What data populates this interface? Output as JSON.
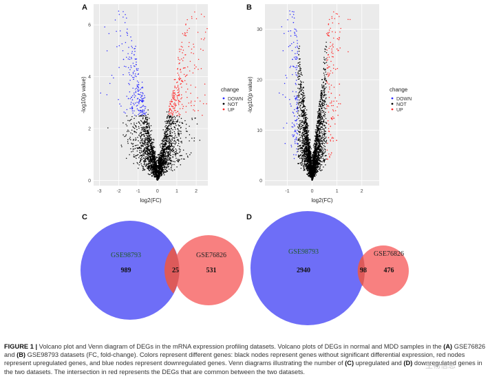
{
  "figure": {
    "panels": {
      "A": "A",
      "B": "B",
      "C": "C",
      "D": "D"
    }
  },
  "chart_data": [
    {
      "type": "scatter",
      "panel": "A",
      "xlabel": "log2(FC)",
      "ylabel": "-log10(p value)",
      "xlim": [
        -3.3,
        2.6
      ],
      "ylim": [
        -0.2,
        6.8
      ],
      "xticks": [
        "-3",
        "-2",
        "-1",
        "0",
        "1",
        "2"
      ],
      "xtick_values": [
        -3,
        -2,
        -1,
        0,
        1,
        2
      ],
      "yticks": [
        "0",
        "2",
        "4",
        "6"
      ],
      "ytick_values": [
        0,
        2,
        4,
        6
      ],
      "legend_title": "change",
      "legend": [
        "DOWN",
        "NOT",
        "UP"
      ],
      "colors": {
        "DOWN": "#2a2aff",
        "NOT": "#000000",
        "UP": "#ff2a2a"
      },
      "distribution": {
        "fc_cut": 0.58,
        "p_cut": 2.5,
        "ymax": 6.6,
        "spread": 1.0,
        "n": 2600
      }
    },
    {
      "type": "scatter",
      "panel": "B",
      "xlabel": "log2(FC)",
      "ylabel": "-log10(p value)",
      "xlim": [
        -1.9,
        2.7
      ],
      "ylim": [
        -1,
        35
      ],
      "xticks": [
        "-1",
        "0",
        "1",
        "2"
      ],
      "xtick_values": [
        -1,
        0,
        1,
        2
      ],
      "yticks": [
        "0",
        "10",
        "20",
        "30"
      ],
      "ytick_values": [
        0,
        10,
        20,
        30
      ],
      "legend_title": "change",
      "legend": [
        "DOWN",
        "NOT",
        "UP"
      ],
      "colors": {
        "DOWN": "#2a2aff",
        "NOT": "#000000",
        "UP": "#ff2a2a"
      },
      "distribution": {
        "fc_cut": 0.58,
        "p_cut": 4,
        "ymax": 34,
        "spread": 0.45,
        "n": 3400
      }
    },
    {
      "type": "venn",
      "panel": "C",
      "sets": [
        {
          "name": "GSE98793",
          "only": "989",
          "color": "#6e6ef7"
        },
        {
          "name": "GSE76826",
          "only": "531",
          "color": "#f77575"
        }
      ],
      "intersection": "25"
    },
    {
      "type": "venn",
      "panel": "D",
      "sets": [
        {
          "name": "GSE98793",
          "only": "2940",
          "color": "#6e6ef7"
        },
        {
          "name": "GSE76826",
          "only": "476",
          "color": "#f77575"
        }
      ],
      "intersection": "98"
    }
  ],
  "caption": {
    "label": "FIGURE 1 |",
    "text_1": " Volcano plot and Venn diagram of DEGs in the mRNA expression profiling datasets. Volcano plots of DEGs in normal and MDD samples in the ",
    "ref_a": "(A)",
    "text_2": " GSE76826 and ",
    "ref_b": "(B)",
    "text_3": " GSE98793 datasets (FC, fold-change). Colors represent different genes: black nodes represent genes without significant differential expression, red nodes represent upregulated genes, and blue nodes represent downregulated genes. Venn diagrams illustrating the number of ",
    "ref_c": "(C)",
    "text_4": " upregulated and ",
    "ref_d": "(D)",
    "text_5": " downregulated genes in the two datasets. The intersection in red represents the DEGs that are common between the two datasets."
  },
  "watermark": "生物信息"
}
